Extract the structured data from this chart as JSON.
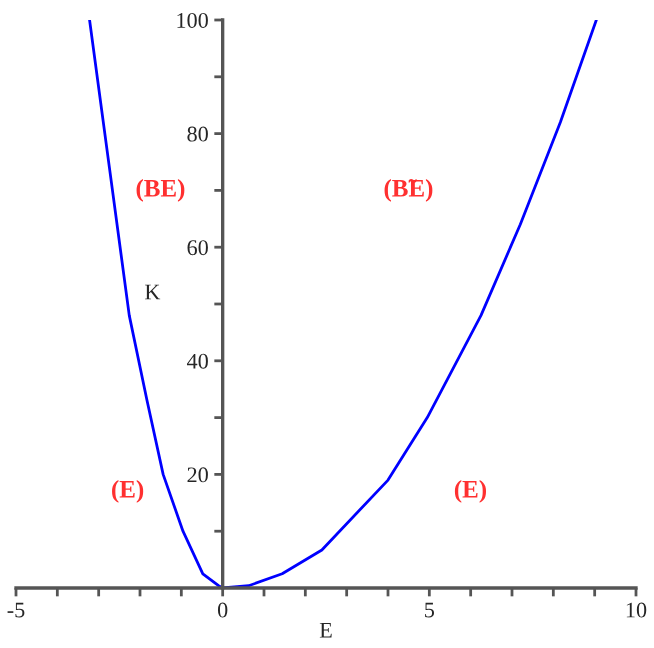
{
  "chart_data": {
    "type": "line",
    "xlabel": "E",
    "ylabel": "K",
    "series": [
      {
        "color": "#0000ff",
        "x": [
          -3.22,
          -2.74,
          -2.26,
          -1.83,
          -1.44,
          -0.96,
          -0.48,
          -0.1,
          0,
          0.63,
          1.44,
          2.4,
          4.0,
          4.95,
          6.25,
          7.2,
          8.17,
          9.04
        ],
        "values": [
          100,
          74,
          48,
          33,
          20,
          10,
          2.5,
          0.4,
          0,
          0.4,
          2.5,
          6.7,
          19,
          30,
          48,
          64,
          82,
          100
        ]
      }
    ],
    "xlim": [
      -5,
      10
    ],
    "xticks": [
      -5,
      {
        "value": -4,
        "label": null
      },
      {
        "value": -3,
        "label": null
      },
      {
        "value": -2,
        "label": null
      },
      {
        "value": -1,
        "label": null
      },
      0,
      {
        "value": 1,
        "label": null
      },
      {
        "value": 2,
        "label": null
      },
      {
        "value": 3,
        "label": null
      },
      {
        "value": 4,
        "label": null
      },
      5,
      {
        "value": 6,
        "label": null
      },
      {
        "value": 7,
        "label": null
      },
      {
        "value": 8,
        "label": null
      },
      {
        "value": 9,
        "label": null
      },
      10
    ],
    "ylim": [
      0,
      100
    ],
    "yticks": [
      {
        "value": 10,
        "label": null
      },
      20,
      {
        "value": 30,
        "label": null
      },
      40,
      {
        "value": 50,
        "label": null
      },
      60,
      {
        "value": 70,
        "label": null
      },
      80,
      {
        "value": 90,
        "label": null
      },
      100
    ],
    "annotations": [
      "(BE)",
      "(B̃E)",
      "(E)",
      "(E)"
    ],
    "grid": false,
    "marker": "none",
    "line_style": "solid"
  }
}
